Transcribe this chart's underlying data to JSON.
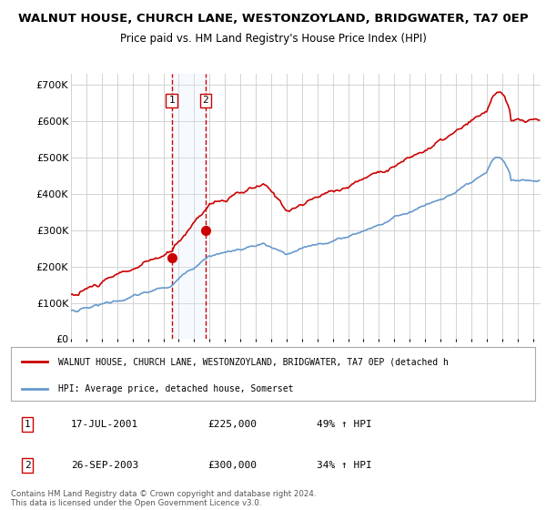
{
  "title": "WALNUT HOUSE, CHURCH LANE, WESTONZOYLAND, BRIDGWATER, TA7 0EP",
  "subtitle": "Price paid vs. HM Land Registry's House Price Index (HPI)",
  "sale1_date": 2001.54,
  "sale1_price": 225000,
  "sale1_label": "1",
  "sale2_date": 2003.73,
  "sale2_price": 300000,
  "sale2_label": "2",
  "legend_line1": "WALNUT HOUSE, CHURCH LANE, WESTONZOYLAND, BRIDGWATER, TA7 0EP (detached h",
  "legend_line2": "HPI: Average price, detached house, Somerset",
  "table_row1": [
    "1",
    "17-JUL-2001",
    "£225,000",
    "49% ↑ HPI"
  ],
  "table_row2": [
    "2",
    "26-SEP-2003",
    "£300,000",
    "34% ↑ HPI"
  ],
  "footnote": "Contains HM Land Registry data © Crown copyright and database right 2024.\nThis data is licensed under the Open Government Licence v3.0.",
  "ylim": [
    0,
    730000
  ],
  "xlim_start": 1995.0,
  "xlim_end": 2025.5,
  "red_color": "#cc0000",
  "blue_color": "#6699cc",
  "shade_color": "#ddeeff",
  "grid_color": "#cccccc",
  "background_color": "#ffffff"
}
